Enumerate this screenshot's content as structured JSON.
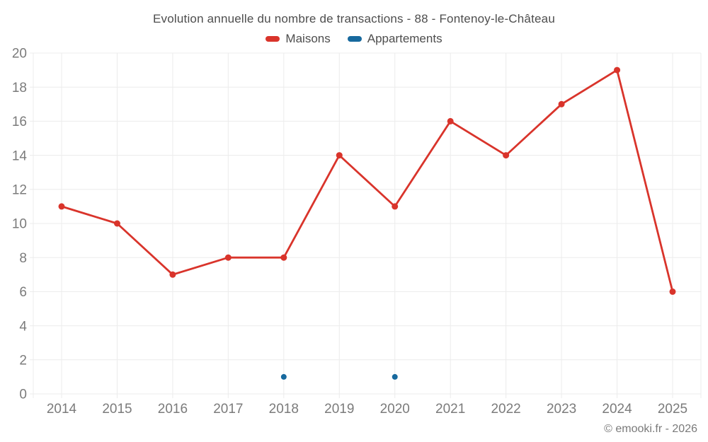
{
  "footer": {
    "copyright": "© emooki.fr - 2026"
  },
  "chart_data": {
    "type": "line",
    "title": "Evolution annuelle du nombre de transactions - 88 - Fontenoy-le-Château",
    "xlabel": "",
    "ylabel": "",
    "categories": [
      "2014",
      "2015",
      "2016",
      "2017",
      "2018",
      "2019",
      "2020",
      "2021",
      "2022",
      "2023",
      "2024",
      "2025"
    ],
    "series": [
      {
        "name": "Maisons",
        "color": "#d9342b",
        "point_radius": 4.5,
        "values": [
          11,
          10,
          7,
          8,
          8,
          14,
          11,
          16,
          14,
          17,
          19,
          6
        ]
      },
      {
        "name": "Appartements",
        "color": "#17699e",
        "point_radius": 4,
        "values": [
          null,
          null,
          null,
          null,
          1,
          null,
          1,
          null,
          null,
          null,
          null,
          null
        ]
      }
    ],
    "ylim": [
      0,
      20
    ],
    "ytick_step": 2,
    "grid": true,
    "legend_position": "top",
    "grid_color": "#ececec"
  }
}
